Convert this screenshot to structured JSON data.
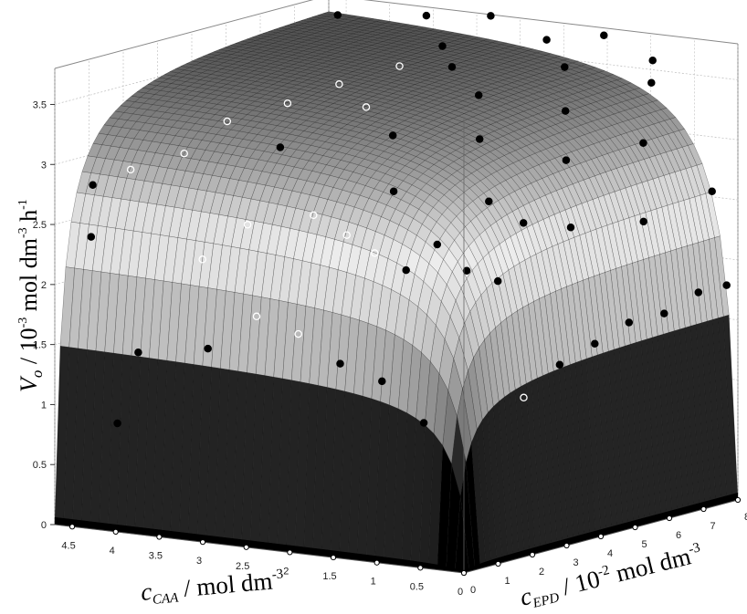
{
  "chart_data": {
    "type": "surface3d",
    "title": "",
    "zlabel": {
      "main": "V",
      "sub": "o",
      "rest": " / 10",
      "exp1": "-3",
      "rest2": " mol dm",
      "exp2": "-3",
      "rest3": " h",
      "exp3": "-1"
    },
    "xlabel": {
      "main": "c",
      "sub": "CAA",
      "rest": " / mol dm",
      "exp": "-3"
    },
    "ylabel": {
      "main": "c",
      "sub": "EPD",
      "rest": " / 10",
      "exp1": "-2",
      "rest2": " mol dm",
      "exp2": "-3"
    },
    "x_axis": {
      "name": "c_CAA",
      "range": [
        0,
        4.7
      ],
      "ticks": [
        "4.5",
        "4",
        "3.5",
        "3",
        "2.5",
        "2",
        "1.5",
        "1",
        "0.5",
        "0"
      ],
      "tick_values": [
        4.5,
        4,
        3.5,
        3,
        2.5,
        2,
        1.5,
        1,
        0.5,
        0
      ]
    },
    "y_axis": {
      "name": "c_EPD",
      "range": [
        0,
        8
      ],
      "ticks": [
        "0",
        "1",
        "2",
        "3",
        "4",
        "5",
        "6",
        "7",
        "8"
      ],
      "tick_values": [
        0,
        1,
        2,
        3,
        4,
        5,
        6,
        7,
        8
      ]
    },
    "z_axis": {
      "name": "V_o",
      "range": [
        0,
        3.8
      ],
      "ticks": [
        "0",
        "0.5",
        "1",
        "1.5",
        "2",
        "2.5",
        "3",
        "3.5"
      ],
      "tick_values": [
        0,
        0.5,
        1,
        1.5,
        2,
        2.5,
        3,
        3.5
      ]
    },
    "surface_model": {
      "Vmax": 3.9,
      "K_CAA": 0.15,
      "K_EPD": 0.25
    },
    "observations": [
      {
        "x": 4.5,
        "y": 0.6,
        "z": 2.8
      },
      {
        "x": 4.3,
        "y": 1.2,
        "z": 2.9
      },
      {
        "x": 4.4,
        "y": 0.3,
        "z": 2.4
      },
      {
        "x": 4.0,
        "y": 2.0,
        "z": 3.0
      },
      {
        "x": 3.9,
        "y": 3.0,
        "z": 3.2
      },
      {
        "x": 3.6,
        "y": 4.0,
        "z": 3.3
      },
      {
        "x": 3.4,
        "y": 5.0,
        "z": 3.4
      },
      {
        "x": 3.1,
        "y": 6.0,
        "z": 3.5
      },
      {
        "x": 3.0,
        "y": 7.0,
        "z": 3.6
      },
      {
        "x": 2.7,
        "y": 1.5,
        "z": 3.2
      },
      {
        "x": 2.5,
        "y": 3.5,
        "z": 3.4
      },
      {
        "x": 2.3,
        "y": 5.5,
        "z": 3.6
      },
      {
        "x": 2.0,
        "y": 7.5,
        "z": 3.7
      },
      {
        "x": 1.8,
        "y": 2.5,
        "z": 3.3
      },
      {
        "x": 1.6,
        "y": 4.5,
        "z": 3.5
      },
      {
        "x": 1.4,
        "y": 6.5,
        "z": 3.6
      },
      {
        "x": 1.2,
        "y": 1.0,
        "z": 3.0
      },
      {
        "x": 1.0,
        "y": 3.0,
        "z": 3.3
      },
      {
        "x": 0.8,
        "y": 5.0,
        "z": 3.4
      },
      {
        "x": 0.6,
        "y": 7.0,
        "z": 3.5
      },
      {
        "x": 0.5,
        "y": 2.0,
        "z": 2.9
      },
      {
        "x": 0.4,
        "y": 4.0,
        "z": 3.1
      },
      {
        "x": 0.3,
        "y": 6.0,
        "z": 3.1
      },
      {
        "x": 0.2,
        "y": 1.5,
        "z": 2.3
      },
      {
        "x": 0.15,
        "y": 3.5,
        "z": 2.6
      },
      {
        "x": 0.1,
        "y": 5.5,
        "z": 2.5
      },
      {
        "x": 0.1,
        "y": 7.5,
        "z": 2.6
      },
      {
        "x": 3.8,
        "y": 0.15,
        "z": 1.5
      },
      {
        "x": 3.0,
        "y": 0.15,
        "z": 1.6
      },
      {
        "x": 2.5,
        "y": 0.3,
        "z": 1.9
      },
      {
        "x": 2.0,
        "y": 0.25,
        "z": 1.8
      },
      {
        "x": 1.5,
        "y": 0.2,
        "z": 1.6
      },
      {
        "x": 1.0,
        "y": 0.15,
        "z": 1.5
      },
      {
        "x": 0.5,
        "y": 0.1,
        "z": 1.2
      },
      {
        "x": 0.1,
        "y": 2.0,
        "z": 1.3
      },
      {
        "x": 0.08,
        "y": 3.0,
        "z": 1.5
      },
      {
        "x": 0.07,
        "y": 4.0,
        "z": 1.6
      },
      {
        "x": 0.07,
        "y": 5.0,
        "z": 1.7
      },
      {
        "x": 0.06,
        "y": 6.0,
        "z": 1.7
      },
      {
        "x": 0.06,
        "y": 7.0,
        "z": 1.8
      },
      {
        "x": 0.05,
        "y": 7.8,
        "z": 1.8
      },
      {
        "x": 4.0,
        "y": 0.05,
        "z": 0.9
      },
      {
        "x": 3.2,
        "y": 0.5,
        "z": 2.3
      },
      {
        "x": 2.8,
        "y": 0.8,
        "z": 2.6
      },
      {
        "x": 2.2,
        "y": 1.2,
        "z": 2.7
      },
      {
        "x": 1.7,
        "y": 0.9,
        "z": 2.6
      },
      {
        "x": 1.3,
        "y": 0.7,
        "z": 2.5
      },
      {
        "x": 0.9,
        "y": 0.6,
        "z": 2.4
      },
      {
        "x": 0.7,
        "y": 1.0,
        "z": 2.6
      },
      {
        "x": 0.4,
        "y": 1.1,
        "z": 2.4
      },
      {
        "x": 0.3,
        "y": 2.5,
        "z": 2.7
      },
      {
        "x": 4.4,
        "y": 7.5,
        "z": 3.7
      },
      {
        "x": 3.5,
        "y": 7.8,
        "z": 3.75
      },
      {
        "x": 2.8,
        "y": 7.9,
        "z": 3.8
      },
      {
        "x": 1.5,
        "y": 7.9,
        "z": 3.75
      },
      {
        "x": 0.9,
        "y": 7.8,
        "z": 3.6
      }
    ]
  },
  "colors": {
    "surface_dark": "#000000",
    "surface_light": "#ececec",
    "mesh": "#111111",
    "frame": "#888888",
    "grid": "#bbbbbb"
  }
}
